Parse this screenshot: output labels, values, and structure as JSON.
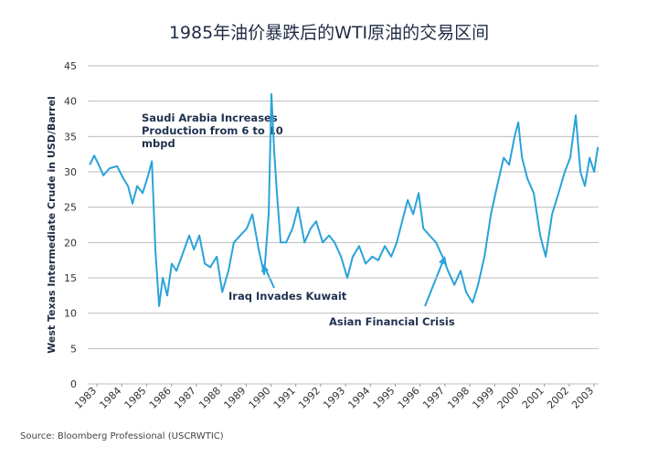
{
  "chart_data": {
    "type": "line",
    "title": "1985年油价暴跌后的WTI原油的交易区间",
    "y_label": "West Texas Intermediate Crude in USD/Barrel",
    "source": "Source: Bloomberg Professional (USCRWTIC)",
    "annotations": [
      "Saudi Arabia Increases Production from 6 to 10 mbpd",
      "Iraq Invades Kuwait",
      "Asian Financial Crisis"
    ],
    "x": [
      1982.71,
      1982.89,
      1983.07,
      1983.26,
      1983.51,
      1983.81,
      1984.07,
      1984.25,
      1984.43,
      1984.62,
      1984.84,
      1985.06,
      1985.21,
      1985.35,
      1985.5,
      1985.65,
      1985.83,
      1986.01,
      1986.2,
      1986.46,
      1986.71,
      1986.9,
      1987.12,
      1987.34,
      1987.56,
      1987.82,
      1988.04,
      1988.29,
      1988.51,
      1988.77,
      1989.03,
      1989.25,
      1989.51,
      1989.73,
      1989.91,
      1990.02,
      1990.13,
      1990.24,
      1990.39,
      1990.61,
      1990.87,
      1991.09,
      1991.35,
      1991.6,
      1991.82,
      1992.08,
      1992.34,
      1992.56,
      1992.82,
      1993.07,
      1993.29,
      1993.55,
      1993.81,
      1994.07,
      1994.32,
      1994.58,
      1994.84,
      1995.06,
      1995.28,
      1995.5,
      1995.72,
      1995.94,
      1996.13,
      1996.38,
      1996.64,
      1996.9,
      1997.12,
      1997.38,
      1997.63,
      1997.85,
      1998.11,
      1998.33,
      1998.59,
      1998.85,
      1999.1,
      1999.36,
      1999.58,
      1999.8,
      1999.95,
      2000.1,
      2000.32,
      2000.57,
      2000.83,
      2001.05,
      2001.31,
      2001.57,
      2001.82,
      2002.04,
      2002.26,
      2002.45,
      2002.63,
      2002.82,
      2003.0,
      2003.15
    ],
    "series": [
      {
        "color": "#2aa3d9",
        "values": [
          31,
          32.3,
          31,
          29.5,
          30.5,
          30.8,
          29,
          28,
          25.5,
          28,
          27,
          29.5,
          31.5,
          19,
          11,
          15,
          12.5,
          17,
          16,
          18.5,
          21,
          19,
          21,
          17,
          16.5,
          18,
          13,
          16,
          20,
          21,
          22,
          24,
          19,
          15.5,
          24,
          41,
          33,
          27,
          20,
          20,
          22,
          25,
          20,
          22,
          23,
          20,
          21,
          20,
          18,
          15,
          18,
          19.5,
          17,
          18,
          17.5,
          19.5,
          18,
          20,
          23,
          26,
          24,
          27,
          22,
          21,
          20,
          18,
          16,
          14,
          16,
          13,
          11.5,
          14,
          18,
          24,
          28,
          32,
          31,
          35,
          37,
          32,
          29,
          27,
          21,
          18,
          24,
          27,
          30,
          32,
          38,
          30,
          28,
          32,
          30,
          33.5
        ]
      }
    ],
    "xlim": [
      1982.63,
      2003.18
    ],
    "xticks": [
      1983,
      1984,
      1985,
      1986,
      1987,
      1988,
      1989,
      1990,
      1991,
      1992,
      1993,
      1994,
      1995,
      1996,
      1997,
      1998,
      1999,
      2000,
      2001,
      2002,
      2003
    ],
    "ylim": [
      0,
      45
    ],
    "yticks": [
      0,
      5,
      10,
      15,
      20,
      25,
      30,
      35,
      40,
      45
    ],
    "grid": true
  }
}
